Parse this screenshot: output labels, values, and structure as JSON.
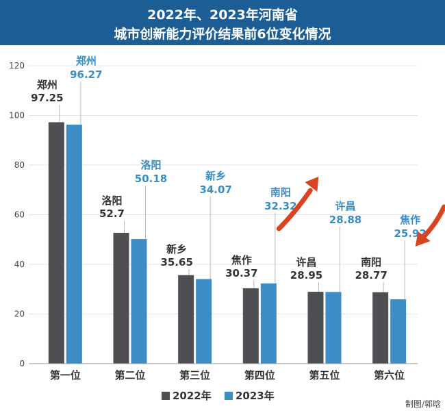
{
  "header": {
    "title_line1": "2022年、2023年河南省",
    "title_line2": "城市创新能力评价结果前6位变化情况"
  },
  "credit": "制图/郭晗",
  "colors": {
    "header_bg": "#1d5d96",
    "series_2022": "#4d4f53",
    "series_2023": "#3d8ec6",
    "label_2023": "#3a8dc4",
    "arrow": "#d84320",
    "grid": "#e3e3e3"
  },
  "chart_data": {
    "type": "bar",
    "categories": [
      "第一位",
      "第二位",
      "第三位",
      "第四位",
      "第五位",
      "第六位"
    ],
    "series": [
      {
        "name": "2022年",
        "values": [
          97.25,
          52.7,
          35.65,
          30.37,
          28.95,
          28.77
        ],
        "cities": [
          "郑州",
          "洛阳",
          "新乡",
          "焦作",
          "许昌",
          "南阳"
        ],
        "value_labels": [
          "97.25",
          "52.7",
          "35.65",
          "30.37",
          "28.95",
          "28.77"
        ]
      },
      {
        "name": "2023年",
        "values": [
          96.27,
          50.18,
          34.07,
          32.32,
          28.88,
          25.92
        ],
        "cities": [
          "郑州",
          "洛阳",
          "新乡",
          "南阳",
          "许昌",
          "焦作"
        ],
        "value_labels": [
          "96.27",
          "50.18",
          "34.07",
          "32.32",
          "28.88",
          "25.92"
        ]
      }
    ],
    "y_ticks": [
      "0",
      "20",
      "40",
      "60",
      "80",
      "100",
      "120"
    ],
    "ylim": [
      0,
      120
    ],
    "grid": true,
    "legend_position": "bottom-center",
    "annotations": [
      {
        "type": "arrow-up",
        "category": "第四位",
        "series": "2023年"
      },
      {
        "type": "arrow-down",
        "category": "第六位",
        "series": "2023年"
      }
    ]
  }
}
